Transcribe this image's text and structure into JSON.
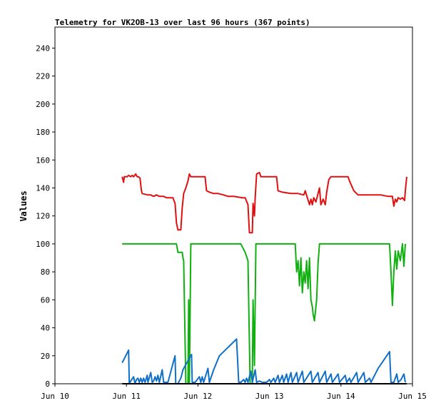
{
  "chart_data": {
    "type": "line",
    "title": "Telemetry for VK2OB-13 over last 96 hours (367 points)",
    "ylabel": "Values",
    "xlabel": "",
    "x_unit": "days since Jun 10 00:00",
    "xlim": [
      0,
      5
    ],
    "ylim": [
      0,
      255
    ],
    "yticks": [
      0,
      20,
      40,
      60,
      80,
      100,
      120,
      140,
      160,
      180,
      200,
      220,
      240
    ],
    "xticks": [
      {
        "x": 0,
        "label": "Jun 10"
      },
      {
        "x": 1,
        "label": "Jun 11"
      },
      {
        "x": 2,
        "label": "Jun 12"
      },
      {
        "x": 3,
        "label": "Jun 13"
      },
      {
        "x": 4,
        "label": "Jun 14"
      },
      {
        "x": 5,
        "label": "Jun 15"
      }
    ],
    "colors": {
      "red": "#e01010",
      "green": "#10b010",
      "blue": "#1070c8",
      "black": "#000000"
    },
    "series": [
      {
        "color": "#e01010",
        "points": [
          [
            0.94,
            148
          ],
          [
            0.96,
            144
          ],
          [
            0.97,
            148
          ],
          [
            1.01,
            148
          ],
          [
            1.03,
            149
          ],
          [
            1.06,
            148
          ],
          [
            1.08,
            149
          ],
          [
            1.1,
            148
          ],
          [
            1.13,
            150
          ],
          [
            1.15,
            148
          ],
          [
            1.17,
            148
          ],
          [
            1.19,
            147
          ],
          [
            1.21,
            138
          ],
          [
            1.22,
            136
          ],
          [
            1.3,
            135
          ],
          [
            1.34,
            135
          ],
          [
            1.38,
            134
          ],
          [
            1.42,
            135
          ],
          [
            1.46,
            134
          ],
          [
            1.52,
            134
          ],
          [
            1.56,
            133
          ],
          [
            1.6,
            133
          ],
          [
            1.65,
            133
          ],
          [
            1.68,
            129
          ],
          [
            1.7,
            115
          ],
          [
            1.72,
            110
          ],
          [
            1.76,
            110
          ],
          [
            1.78,
            126
          ],
          [
            1.8,
            136
          ],
          [
            1.83,
            140
          ],
          [
            1.86,
            145
          ],
          [
            1.88,
            150
          ],
          [
            1.9,
            148
          ],
          [
            2.06,
            148
          ],
          [
            2.1,
            148
          ],
          [
            2.12,
            138
          ],
          [
            2.16,
            137
          ],
          [
            2.22,
            136
          ],
          [
            2.28,
            136
          ],
          [
            2.36,
            135
          ],
          [
            2.42,
            134
          ],
          [
            2.5,
            134
          ],
          [
            2.62,
            133
          ],
          [
            2.66,
            133
          ],
          [
            2.7,
            128
          ],
          [
            2.72,
            108
          ],
          [
            2.76,
            108
          ],
          [
            2.77,
            129
          ],
          [
            2.79,
            120
          ],
          [
            2.8,
            133
          ],
          [
            2.82,
            150
          ],
          [
            2.86,
            151
          ],
          [
            2.88,
            148
          ],
          [
            2.96,
            148
          ],
          [
            3.06,
            148
          ],
          [
            3.1,
            148
          ],
          [
            3.12,
            138
          ],
          [
            3.18,
            137
          ],
          [
            3.3,
            136
          ],
          [
            3.4,
            136
          ],
          [
            3.48,
            135
          ],
          [
            3.5,
            138
          ],
          [
            3.53,
            133
          ],
          [
            3.56,
            128
          ],
          [
            3.58,
            132
          ],
          [
            3.6,
            128
          ],
          [
            3.62,
            133
          ],
          [
            3.65,
            130
          ],
          [
            3.67,
            134
          ],
          [
            3.7,
            140
          ],
          [
            3.72,
            128
          ],
          [
            3.75,
            132
          ],
          [
            3.78,
            128
          ],
          [
            3.8,
            137
          ],
          [
            3.83,
            146
          ],
          [
            3.86,
            148
          ],
          [
            3.96,
            148
          ],
          [
            4.06,
            148
          ],
          [
            4.1,
            148
          ],
          [
            4.12,
            145
          ],
          [
            4.18,
            138
          ],
          [
            4.24,
            135
          ],
          [
            4.4,
            135
          ],
          [
            4.56,
            135
          ],
          [
            4.66,
            134
          ],
          [
            4.72,
            134
          ],
          [
            4.74,
            127
          ],
          [
            4.76,
            132
          ],
          [
            4.78,
            130
          ],
          [
            4.8,
            133
          ],
          [
            4.83,
            132
          ],
          [
            4.86,
            133
          ],
          [
            4.89,
            131
          ],
          [
            4.9,
            138
          ],
          [
            4.92,
            148
          ]
        ]
      },
      {
        "color": "#10b010",
        "points": [
          [
            0.94,
            100
          ],
          [
            1.7,
            100
          ],
          [
            1.72,
            94
          ],
          [
            1.78,
            94
          ],
          [
            1.79,
            90
          ],
          [
            1.8,
            88
          ],
          [
            1.82,
            30
          ],
          [
            1.83,
            0
          ],
          [
            1.86,
            0
          ],
          [
            1.87,
            60
          ],
          [
            1.88,
            0
          ],
          [
            1.9,
            100
          ],
          [
            2.6,
            100
          ],
          [
            2.66,
            94
          ],
          [
            2.7,
            88
          ],
          [
            2.73,
            0
          ],
          [
            2.76,
            0
          ],
          [
            2.77,
            60
          ],
          [
            2.79,
            13
          ],
          [
            2.81,
            100
          ],
          [
            3.36,
            100
          ],
          [
            3.38,
            80
          ],
          [
            3.4,
            88
          ],
          [
            3.42,
            70
          ],
          [
            3.44,
            90
          ],
          [
            3.46,
            65
          ],
          [
            3.48,
            80
          ],
          [
            3.5,
            72
          ],
          [
            3.52,
            88
          ],
          [
            3.54,
            68
          ],
          [
            3.56,
            90
          ],
          [
            3.58,
            60
          ],
          [
            3.6,
            55
          ],
          [
            3.61,
            50
          ],
          [
            3.63,
            45
          ],
          [
            3.66,
            60
          ],
          [
            3.68,
            86
          ],
          [
            3.7,
            100
          ],
          [
            4.6,
            100
          ],
          [
            4.68,
            100
          ],
          [
            4.7,
            80
          ],
          [
            4.72,
            56
          ],
          [
            4.74,
            80
          ],
          [
            4.76,
            95
          ],
          [
            4.78,
            82
          ],
          [
            4.8,
            95
          ],
          [
            4.83,
            88
          ],
          [
            4.86,
            100
          ],
          [
            4.88,
            84
          ],
          [
            4.9,
            100
          ]
        ]
      },
      {
        "color": "#1070c8",
        "points": [
          [
            0.94,
            15
          ],
          [
            1.03,
            24
          ],
          [
            1.04,
            0
          ],
          [
            1.06,
            2
          ],
          [
            1.1,
            5
          ],
          [
            1.12,
            0
          ],
          [
            1.14,
            3
          ],
          [
            1.16,
            4
          ],
          [
            1.18,
            1
          ],
          [
            1.2,
            4
          ],
          [
            1.22,
            1
          ],
          [
            1.24,
            4
          ],
          [
            1.26,
            1
          ],
          [
            1.29,
            6
          ],
          [
            1.3,
            1
          ],
          [
            1.34,
            8
          ],
          [
            1.36,
            1
          ],
          [
            1.38,
            2
          ],
          [
            1.4,
            5
          ],
          [
            1.42,
            2
          ],
          [
            1.44,
            6
          ],
          [
            1.46,
            1
          ],
          [
            1.5,
            10
          ],
          [
            1.52,
            1
          ],
          [
            1.58,
            1
          ],
          [
            1.68,
            20
          ],
          [
            1.69,
            0
          ],
          [
            1.72,
            0
          ],
          [
            1.74,
            2
          ],
          [
            1.76,
            4
          ],
          [
            1.79,
            10
          ],
          [
            1.91,
            21
          ],
          [
            1.92,
            1
          ],
          [
            1.96,
            1
          ],
          [
            2.02,
            5
          ],
          [
            2.04,
            1
          ],
          [
            2.06,
            5
          ],
          [
            2.08,
            1
          ],
          [
            2.14,
            11
          ],
          [
            2.16,
            1
          ],
          [
            2.22,
            10
          ],
          [
            2.3,
            20
          ],
          [
            2.38,
            24
          ],
          [
            2.46,
            28
          ],
          [
            2.54,
            32
          ],
          [
            2.57,
            1
          ],
          [
            2.6,
            1
          ],
          [
            2.64,
            3
          ],
          [
            2.66,
            1
          ],
          [
            2.68,
            4
          ],
          [
            2.7,
            1
          ],
          [
            2.74,
            9
          ],
          [
            2.76,
            1
          ],
          [
            2.8,
            10
          ],
          [
            2.82,
            1
          ],
          [
            2.86,
            2
          ],
          [
            2.9,
            1
          ],
          [
            2.96,
            1
          ],
          [
            3.0,
            3
          ],
          [
            3.02,
            1
          ],
          [
            3.06,
            4
          ],
          [
            3.08,
            1
          ],
          [
            3.12,
            6
          ],
          [
            3.14,
            1
          ],
          [
            3.18,
            6
          ],
          [
            3.2,
            1
          ],
          [
            3.24,
            7
          ],
          [
            3.26,
            1
          ],
          [
            3.3,
            8
          ],
          [
            3.32,
            1
          ],
          [
            3.38,
            8
          ],
          [
            3.4,
            1
          ],
          [
            3.46,
            9
          ],
          [
            3.48,
            1
          ],
          [
            3.58,
            9
          ],
          [
            3.6,
            1
          ],
          [
            3.68,
            8
          ],
          [
            3.7,
            1
          ],
          [
            3.78,
            9
          ],
          [
            3.8,
            1
          ],
          [
            3.86,
            7
          ],
          [
            3.88,
            1
          ],
          [
            3.96,
            7
          ],
          [
            3.98,
            1
          ],
          [
            4.06,
            6
          ],
          [
            4.08,
            1
          ],
          [
            4.12,
            4
          ],
          [
            4.14,
            1
          ],
          [
            4.22,
            8
          ],
          [
            4.24,
            1
          ],
          [
            4.32,
            8
          ],
          [
            4.34,
            1
          ],
          [
            4.4,
            4
          ],
          [
            4.42,
            1
          ],
          [
            4.52,
            11
          ],
          [
            4.6,
            17
          ],
          [
            4.68,
            23
          ],
          [
            4.7,
            1
          ],
          [
            4.74,
            1
          ],
          [
            4.78,
            7
          ],
          [
            4.8,
            1
          ],
          [
            4.84,
            3
          ],
          [
            4.88,
            7
          ],
          [
            4.9,
            1
          ]
        ]
      },
      {
        "color": "#000000",
        "points": [
          [
            0.94,
            0
          ],
          [
            4.92,
            0
          ]
        ]
      }
    ],
    "grid": false,
    "legend": "none"
  }
}
